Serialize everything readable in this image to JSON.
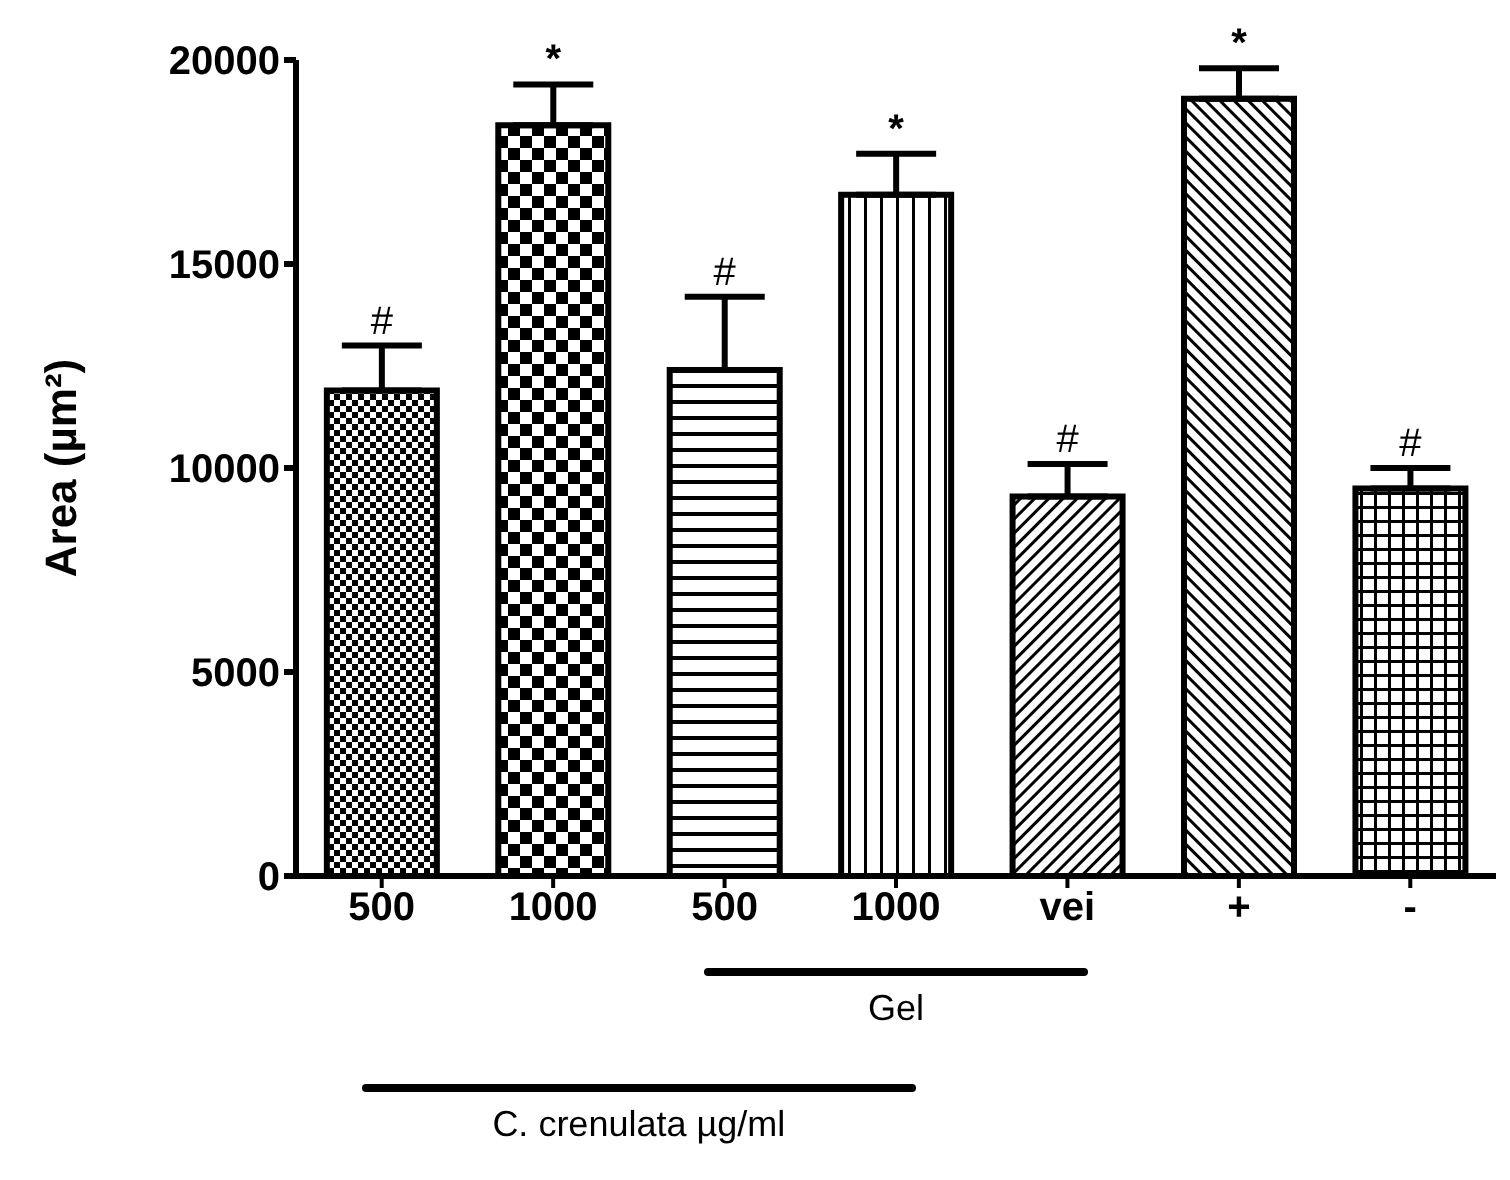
{
  "chart_data": {
    "type": "bar",
    "ylabel": "Area (µm²)",
    "categories": [
      "500",
      "1000",
      "500",
      "1000",
      "vei",
      "+",
      "-"
    ],
    "values": [
      11900,
      18400,
      12400,
      16700,
      9300,
      19050,
      9500
    ],
    "errors": [
      [
        11900,
        13000
      ],
      [
        18400,
        19400
      ],
      [
        12400,
        14200
      ],
      [
        16700,
        17700
      ],
      [
        9300,
        10100
      ],
      [
        19050,
        19800
      ],
      [
        9500,
        10000
      ]
    ],
    "value_labels": [
      "#",
      "*",
      "#",
      "*",
      "#",
      "*",
      "#"
    ],
    "color": "#000000",
    "ylim": [
      0,
      20000
    ],
    "yticks": [
      0,
      5000,
      10000,
      15000,
      20000
    ],
    "annotations": [
      "Gel",
      "C. crenulata µg/ml"
    ]
  }
}
